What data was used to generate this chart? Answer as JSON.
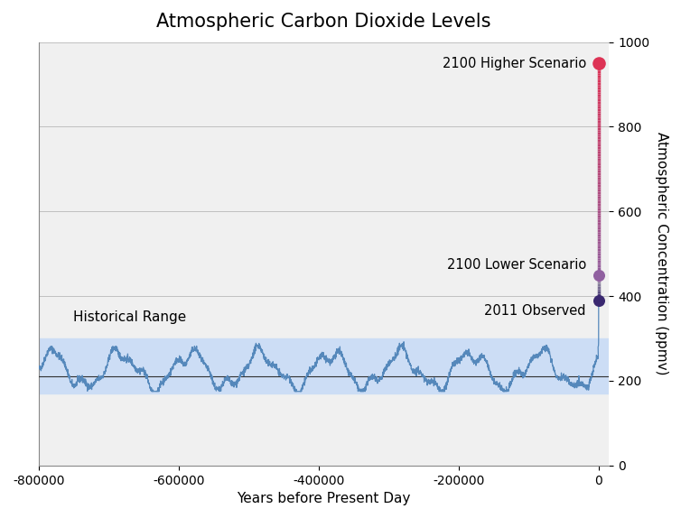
{
  "title": "Atmospheric Carbon Dioxide Levels",
  "xlabel": "Years before Present Day",
  "ylabel": "Atmospheric Concentration (ppmv)",
  "xlim": [
    -800000,
    15000
  ],
  "ylim": [
    0,
    1000
  ],
  "yticks": [
    0,
    200,
    400,
    600,
    800,
    1000
  ],
  "xticks": [
    -800000,
    -600000,
    -400000,
    -200000,
    0
  ],
  "bg_color": "#f0f0f0",
  "fig_color": "#ffffff",
  "historical_band_low": 170,
  "historical_band_high": 300,
  "historical_band_color": "#ccddf5",
  "historical_mean": 210,
  "mean_line_color": "#303030",
  "co2_line_color": "#5588bb",
  "observed_2011": 390,
  "lower_2100": 450,
  "higher_2100": 950,
  "observed_color": "#3a2870",
  "lower_color": "#9060a0",
  "higher_color": "#dd3355",
  "label_historical": "Historical Range",
  "label_observed": "2011 Observed",
  "label_lower": "2100 Lower Scenario",
  "label_higher": "2100 Higher Scenario",
  "title_fontsize": 15,
  "label_fontsize": 11,
  "tick_fontsize": 10
}
